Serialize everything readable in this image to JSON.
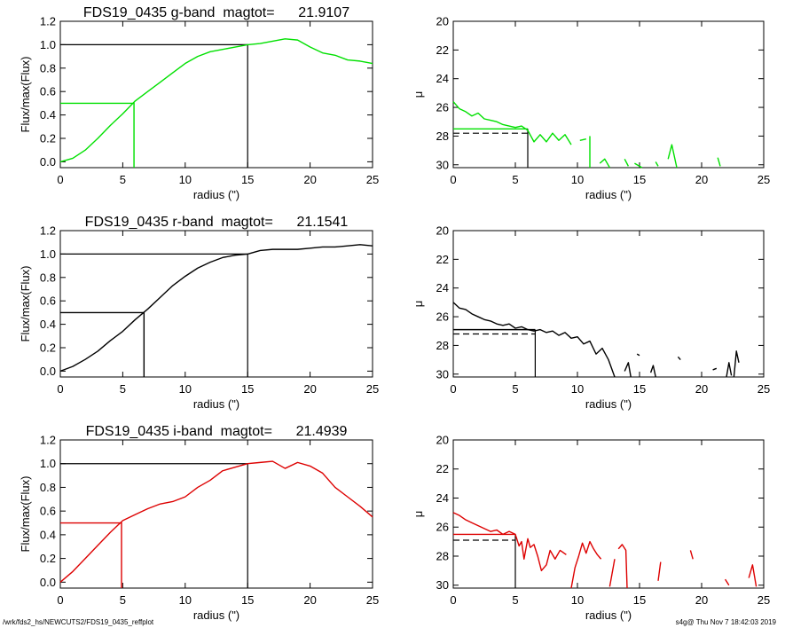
{
  "footer": {
    "path": "/wrk/fds2_hs/NEWCUTS2/FDS19_0435_reffplot",
    "stamp": "s4g@  Thu Nov  7 18:42:03 2019"
  },
  "chart_data": [
    {
      "type": "line",
      "title": "FDS19_0435 g-band  magtot=      21.9107",
      "xlabel": "radius (\")",
      "ylabel": "Flux/max(Flux)",
      "xlim": [
        0,
        25
      ],
      "ylim": [
        -0.05,
        1.2
      ],
      "xticks": [
        0,
        5,
        10,
        15,
        20,
        25
      ],
      "yticks": [
        0.0,
        0.2,
        0.4,
        0.6,
        0.8,
        1.0,
        1.2
      ],
      "ytick_labels": [
        "0.0",
        "0.2",
        "0.4",
        "0.6",
        "0.8",
        "1.0",
        "1.2"
      ],
      "grid": false,
      "series": [
        {
          "color": "#00e000",
          "x": [
            0,
            1,
            2,
            3,
            4,
            5,
            6,
            7,
            8,
            9,
            10,
            11,
            12,
            13,
            14,
            15,
            16,
            17,
            18,
            19,
            20,
            21,
            22,
            23,
            24,
            25
          ],
          "y": [
            0.0,
            0.03,
            0.1,
            0.2,
            0.31,
            0.41,
            0.52,
            0.6,
            0.68,
            0.76,
            0.84,
            0.9,
            0.94,
            0.96,
            0.98,
            1.0,
            1.01,
            1.03,
            1.05,
            1.04,
            0.98,
            0.93,
            0.91,
            0.87,
            0.86,
            0.84
          ]
        }
      ],
      "reference_lines": {
        "half": {
          "x": 5.9,
          "y": 0.5,
          "color": "#00e000"
        },
        "full": {
          "x": 15,
          "y": 1.0,
          "color": "#000000"
        }
      }
    },
    {
      "type": "line",
      "xlabel": "radius (\")",
      "ylabel": "μ",
      "xlim": [
        0,
        25
      ],
      "ylim": [
        30.2,
        20
      ],
      "xticks": [
        0,
        5,
        10,
        15,
        20,
        25
      ],
      "yticks": [
        20,
        22,
        24,
        26,
        28,
        30
      ],
      "grid": false,
      "series": [
        {
          "color": "#00e000",
          "segments": [
            [
              [
                0,
                25.6
              ],
              [
                0.5,
                26.1
              ],
              [
                1,
                26.3
              ],
              [
                1.5,
                26.6
              ],
              [
                2,
                26.4
              ],
              [
                2.5,
                26.8
              ],
              [
                3,
                26.9
              ],
              [
                3.5,
                27.0
              ],
              [
                4,
                27.2
              ],
              [
                4.5,
                27.3
              ],
              [
                5,
                27.4
              ],
              [
                5.5,
                27.3
              ],
              [
                6,
                27.6
              ],
              [
                6.5,
                28.4
              ],
              [
                7,
                27.9
              ],
              [
                7.5,
                28.4
              ],
              [
                8,
                27.8
              ],
              [
                8.5,
                28.3
              ],
              [
                9,
                27.9
              ],
              [
                9.5,
                28.6
              ]
            ],
            [
              [
                10.2,
                28.3
              ],
              [
                10.7,
                28.2
              ]
            ],
            [
              [
                11,
                28.0
              ],
              [
                11,
                30.2
              ]
            ],
            [
              [
                11.8,
                29.9
              ],
              [
                12.2,
                29.6
              ],
              [
                12.6,
                30.2
              ]
            ],
            [
              [
                13.8,
                29.6
              ],
              [
                14.1,
                30.1
              ]
            ],
            [
              [
                14.6,
                29.9
              ],
              [
                15.2,
                30.2
              ]
            ],
            [
              [
                16.3,
                29.8
              ],
              [
                16.5,
                30.1
              ]
            ],
            [
              [
                17.3,
                29.6
              ],
              [
                17.6,
                28.6
              ],
              [
                18.0,
                30.2
              ]
            ],
            [
              [
                21.3,
                29.5
              ],
              [
                21.5,
                30.1
              ]
            ]
          ]
        }
      ],
      "reference_lines": {
        "mu_solid": {
          "y": 27.5,
          "x_end": 6,
          "color": "#00e000"
        },
        "mu_dashed": {
          "y": 27.8,
          "x_end": 6,
          "color": "#000000"
        },
        "r_eff": {
          "x": 6,
          "color": "#000000"
        }
      }
    },
    {
      "type": "line",
      "title": "FDS19_0435 r-band  magtot=      21.1541",
      "xlabel": "radius (\")",
      "ylabel": "Flux/max(Flux)",
      "xlim": [
        0,
        25
      ],
      "ylim": [
        -0.05,
        1.2
      ],
      "xticks": [
        0,
        5,
        10,
        15,
        20,
        25
      ],
      "yticks": [
        0.0,
        0.2,
        0.4,
        0.6,
        0.8,
        1.0,
        1.2
      ],
      "ytick_labels": [
        "0.0",
        "0.2",
        "0.4",
        "0.6",
        "0.8",
        "1.0",
        "1.2"
      ],
      "grid": false,
      "series": [
        {
          "color": "#000000",
          "x": [
            0,
            1,
            2,
            3,
            4,
            5,
            6,
            7,
            8,
            9,
            10,
            11,
            12,
            13,
            14,
            15,
            16,
            17,
            18,
            19,
            20,
            21,
            22,
            23,
            24,
            25
          ],
          "y": [
            0.0,
            0.04,
            0.1,
            0.17,
            0.26,
            0.34,
            0.44,
            0.53,
            0.63,
            0.73,
            0.81,
            0.88,
            0.93,
            0.97,
            0.99,
            1.0,
            1.03,
            1.04,
            1.04,
            1.04,
            1.05,
            1.06,
            1.06,
            1.07,
            1.08,
            1.07
          ]
        }
      ],
      "reference_lines": {
        "half": {
          "x": 6.7,
          "y": 0.5,
          "color": "#000000"
        },
        "full": {
          "x": 15,
          "y": 1.0,
          "color": "#000000"
        }
      }
    },
    {
      "type": "line",
      "xlabel": "radius (\")",
      "ylabel": "μ",
      "xlim": [
        0,
        25
      ],
      "ylim": [
        30.2,
        20
      ],
      "xticks": [
        0,
        5,
        10,
        15,
        20,
        25
      ],
      "yticks": [
        20,
        22,
        24,
        26,
        28,
        30
      ],
      "grid": false,
      "series": [
        {
          "color": "#000000",
          "segments": [
            [
              [
                0,
                25.0
              ],
              [
                0.5,
                25.4
              ],
              [
                1,
                25.5
              ],
              [
                1.5,
                25.8
              ],
              [
                2,
                26.0
              ],
              [
                2.5,
                26.2
              ],
              [
                3,
                26.3
              ],
              [
                3.5,
                26.5
              ],
              [
                4,
                26.6
              ],
              [
                4.5,
                26.5
              ],
              [
                5,
                26.8
              ],
              [
                5.5,
                26.7
              ],
              [
                6,
                26.9
              ],
              [
                6.5,
                27.0
              ],
              [
                7,
                26.9
              ],
              [
                7.5,
                27.1
              ],
              [
                8,
                27.0
              ],
              [
                8.5,
                27.3
              ],
              [
                9,
                27.1
              ],
              [
                9.5,
                27.5
              ],
              [
                10,
                27.4
              ],
              [
                10.5,
                27.9
              ],
              [
                11,
                27.7
              ],
              [
                11.5,
                28.6
              ],
              [
                12,
                28.2
              ],
              [
                12.5,
                29.0
              ],
              [
                13,
                30.2
              ]
            ],
            [
              [
                13.8,
                29.8
              ],
              [
                14.1,
                29.2
              ],
              [
                14.3,
                30.2
              ]
            ],
            [
              [
                14.8,
                28.6
              ],
              [
                15.0,
                28.7
              ]
            ],
            [
              [
                15.9,
                29.9
              ],
              [
                16.1,
                29.4
              ],
              [
                16.3,
                30.2
              ]
            ],
            [
              [
                18.1,
                28.8
              ],
              [
                18.3,
                29.0
              ]
            ],
            [
              [
                20.9,
                29.7
              ],
              [
                21.2,
                29.6
              ]
            ],
            [
              [
                22.0,
                30.2
              ],
              [
                22.2,
                29.2
              ],
              [
                22.4,
                30.1
              ]
            ],
            [
              [
                22.6,
                30.2
              ],
              [
                22.8,
                28.4
              ],
              [
                23.0,
                29.2
              ]
            ]
          ]
        }
      ],
      "reference_lines": {
        "mu_solid": {
          "y": 26.9,
          "x_end": 6.6,
          "color": "#000000"
        },
        "mu_dashed": {
          "y": 27.2,
          "x_end": 6.6,
          "color": "#000000"
        },
        "r_eff": {
          "x": 6.6,
          "color": "#000000"
        }
      }
    },
    {
      "type": "line",
      "title": "FDS19_0435 i-band  magtot=      21.4939",
      "xlabel": "radius (\")",
      "ylabel": "Flux/max(Flux)",
      "xlim": [
        0,
        25
      ],
      "ylim": [
        -0.05,
        1.2
      ],
      "xticks": [
        0,
        5,
        10,
        15,
        20,
        25
      ],
      "yticks": [
        0.0,
        0.2,
        0.4,
        0.6,
        0.8,
        1.0,
        1.2
      ],
      "ytick_labels": [
        "0.0",
        "0.2",
        "0.4",
        "0.6",
        "0.8",
        "1.0",
        "1.2"
      ],
      "grid": false,
      "series": [
        {
          "color": "#dd0000",
          "x": [
            0,
            1,
            2,
            3,
            4,
            5,
            6,
            7,
            8,
            9,
            10,
            11,
            12,
            13,
            14,
            15,
            16,
            17,
            18,
            19,
            20,
            21,
            22,
            23,
            24,
            25
          ],
          "y": [
            0.0,
            0.09,
            0.2,
            0.31,
            0.42,
            0.52,
            0.57,
            0.62,
            0.66,
            0.68,
            0.72,
            0.8,
            0.86,
            0.94,
            0.97,
            1.0,
            1.01,
            1.02,
            0.96,
            1.01,
            0.98,
            0.92,
            0.8,
            0.72,
            0.64,
            0.55
          ]
        }
      ],
      "reference_lines": {
        "half": {
          "x": 4.9,
          "y": 0.5,
          "color": "#dd0000"
        },
        "full": {
          "x": 15,
          "y": 1.0,
          "color": "#000000"
        }
      }
    },
    {
      "type": "line",
      "xlabel": "radius (\")",
      "ylabel": "μ",
      "xlim": [
        0,
        25
      ],
      "ylim": [
        30.2,
        20
      ],
      "xticks": [
        0,
        5,
        10,
        15,
        20,
        25
      ],
      "yticks": [
        20,
        22,
        24,
        26,
        28,
        30
      ],
      "grid": false,
      "series": [
        {
          "color": "#dd0000",
          "segments": [
            [
              [
                0,
                25.0
              ],
              [
                0.5,
                25.2
              ],
              [
                1,
                25.5
              ],
              [
                1.5,
                25.7
              ],
              [
                2,
                25.9
              ],
              [
                2.5,
                26.1
              ],
              [
                3,
                26.3
              ],
              [
                3.5,
                26.2
              ],
              [
                4,
                26.5
              ],
              [
                4.5,
                26.3
              ],
              [
                5,
                26.5
              ],
              [
                5.3,
                27.3
              ],
              [
                5.5,
                27.0
              ],
              [
                5.7,
                28.2
              ],
              [
                6.0,
                26.8
              ],
              [
                6.2,
                27.4
              ],
              [
                6.5,
                27.2
              ],
              [
                6.8,
                28.0
              ],
              [
                7.1,
                29.0
              ],
              [
                7.5,
                28.6
              ],
              [
                7.8,
                27.6
              ],
              [
                8.2,
                28.2
              ],
              [
                8.6,
                27.6
              ],
              [
                9.1,
                27.9
              ]
            ],
            [
              [
                9.5,
                30.2
              ],
              [
                9.8,
                28.8
              ],
              [
                10.1,
                28.0
              ],
              [
                10.4,
                27.1
              ],
              [
                10.7,
                27.8
              ],
              [
                11.0,
                27.0
              ],
              [
                11.3,
                27.5
              ],
              [
                11.6,
                27.9
              ],
              [
                11.9,
                28.2
              ]
            ],
            [
              [
                12.6,
                30.1
              ],
              [
                13.0,
                28.2
              ]
            ],
            [
              [
                13.3,
                27.5
              ],
              [
                13.6,
                27.2
              ],
              [
                13.9,
                27.6
              ],
              [
                14.0,
                30.2
              ]
            ],
            [
              [
                16.5,
                29.7
              ],
              [
                16.7,
                28.4
              ]
            ],
            [
              [
                19.1,
                27.6
              ],
              [
                19.3,
                28.2
              ]
            ],
            [
              [
                21.9,
                29.6
              ],
              [
                22.2,
                30.0
              ]
            ],
            [
              [
                23.8,
                29.5
              ],
              [
                24.1,
                28.6
              ],
              [
                24.4,
                30.1
              ]
            ]
          ]
        }
      ],
      "reference_lines": {
        "mu_solid": {
          "y": 26.5,
          "x_end": 5,
          "color": "#dd0000"
        },
        "mu_dashed": {
          "y": 26.9,
          "x_end": 5,
          "color": "#000000"
        },
        "r_eff": {
          "x": 5,
          "color": "#000000"
        }
      }
    }
  ]
}
